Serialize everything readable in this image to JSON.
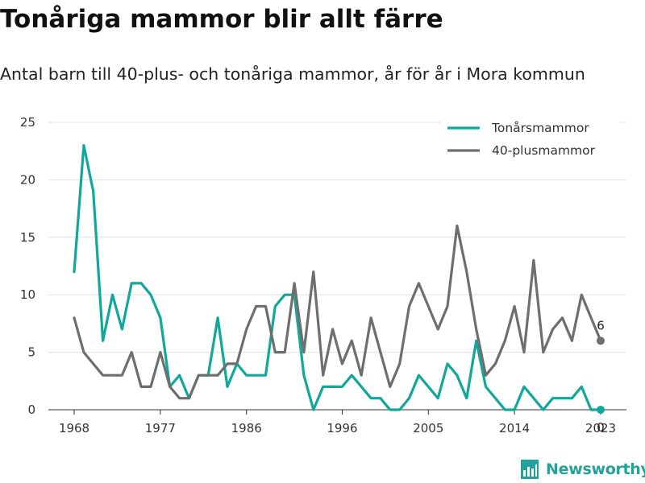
{
  "title": "Tonåriga mammor blir allt färre",
  "subtitle": "Antal barn till 40-plus- och tonåriga mammor, år för år i Mora kommun",
  "brand": {
    "name": "Newsworthy",
    "icon": "newsworthy-logo-icon",
    "color": "#21a29a"
  },
  "chart_data": {
    "type": "line",
    "x": [
      1968,
      1969,
      1970,
      1971,
      1972,
      1973,
      1974,
      1975,
      1976,
      1977,
      1978,
      1979,
      1980,
      1981,
      1982,
      1983,
      1984,
      1985,
      1986,
      1987,
      1988,
      1989,
      1990,
      1991,
      1992,
      1993,
      1994,
      1995,
      1996,
      1997,
      1998,
      1999,
      2000,
      2001,
      2002,
      2003,
      2004,
      2005,
      2006,
      2007,
      2008,
      2009,
      2010,
      2011,
      2012,
      2013,
      2014,
      2015,
      2016,
      2017,
      2018,
      2019,
      2020,
      2021,
      2022,
      2023
    ],
    "series": [
      {
        "name": "Tonårsmammor",
        "color": "#11a79b",
        "values": [
          12,
          23,
          19,
          6,
          10,
          7,
          11,
          11,
          10,
          8,
          2,
          3,
          1,
          3,
          3,
          8,
          2,
          4,
          3,
          3,
          3,
          9,
          10,
          10,
          3,
          0,
          2,
          2,
          2,
          3,
          2,
          1,
          1,
          0,
          0,
          1,
          3,
          2,
          1,
          4,
          3,
          1,
          6,
          2,
          1,
          0,
          0,
          2,
          1,
          0,
          1,
          1,
          1,
          2,
          0,
          0
        ]
      },
      {
        "name": "40-plusmammor",
        "color": "#6e6e6e",
        "values": [
          8,
          5,
          4,
          3,
          3,
          3,
          5,
          2,
          2,
          5,
          2,
          1,
          1,
          3,
          3,
          3,
          4,
          4,
          7,
          9,
          9,
          5,
          5,
          11,
          5,
          12,
          3,
          7,
          4,
          6,
          3,
          8,
          5,
          2,
          4,
          9,
          11,
          9,
          7,
          9,
          16,
          12,
          7,
          3,
          4,
          6,
          9,
          5,
          13,
          5,
          7,
          8,
          6,
          10,
          8,
          6
        ]
      }
    ],
    "end_labels": [
      {
        "series": "40-plusmammor",
        "value": "6"
      },
      {
        "series": "Tonårsmammor",
        "value": "0"
      }
    ],
    "xticks": [
      "1968",
      "1977",
      "1986",
      "1996",
      "2005",
      "2014",
      "2023"
    ],
    "yticks": [
      "0",
      "5",
      "10",
      "15",
      "20",
      "25"
    ],
    "xlim": [
      1968,
      2023
    ],
    "ylim": [
      0,
      25
    ],
    "grid": true,
    "legend_position": "top-right",
    "xlabel": "",
    "ylabel": ""
  }
}
